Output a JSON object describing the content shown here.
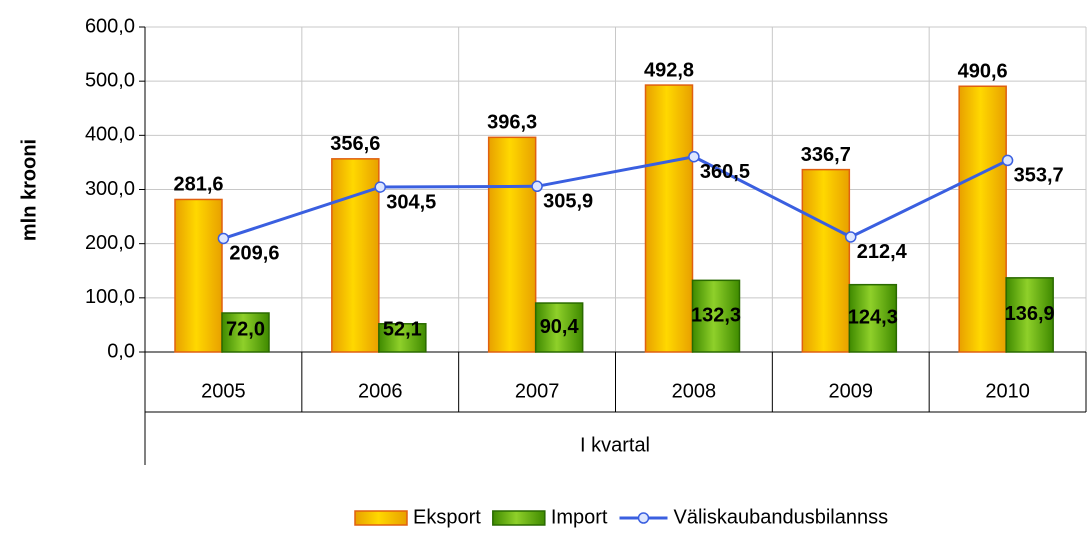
{
  "chart_data": {
    "type": "bar-line",
    "x_label": "I kvartal",
    "y_label": "mln krooni",
    "categories": [
      "2005",
      "2006",
      "2007",
      "2008",
      "2009",
      "2010"
    ],
    "series": [
      {
        "name": "Eksport",
        "kind": "bar",
        "color": "#f5b800",
        "values": [
          281.6,
          356.6,
          396.3,
          492.8,
          336.7,
          490.6
        ],
        "value_labels": [
          "281,6",
          "356,6",
          "396,3",
          "492,8",
          "336,7",
          "490,6"
        ]
      },
      {
        "name": "Import",
        "kind": "bar",
        "color": "#5fa80a",
        "values": [
          72.0,
          52.1,
          90.4,
          132.3,
          124.3,
          136.9
        ],
        "value_labels": [
          "72,0",
          "52,1",
          "90,4",
          "132,3",
          "124,3",
          "136,9"
        ]
      },
      {
        "name": "Väliskaubandusbilannss",
        "kind": "line",
        "color": "#3a5fe0",
        "values": [
          209.6,
          304.5,
          305.9,
          360.5,
          212.4,
          353.7
        ],
        "value_labels": [
          "209,6",
          "304,5",
          "305,9",
          "360,5",
          "212,4",
          "353,7"
        ]
      }
    ],
    "ylim": [
      0,
      600
    ],
    "yticks": [
      {
        "value": 0,
        "label": "0,0"
      },
      {
        "value": 100,
        "label": "100,0"
      },
      {
        "value": 200,
        "label": "200,0"
      },
      {
        "value": 300,
        "label": "300,0"
      },
      {
        "value": 400,
        "label": "400,0"
      },
      {
        "value": 500,
        "label": "500,0"
      },
      {
        "value": 600,
        "label": "600,0"
      }
    ],
    "grid": true,
    "legend": "bottom"
  }
}
